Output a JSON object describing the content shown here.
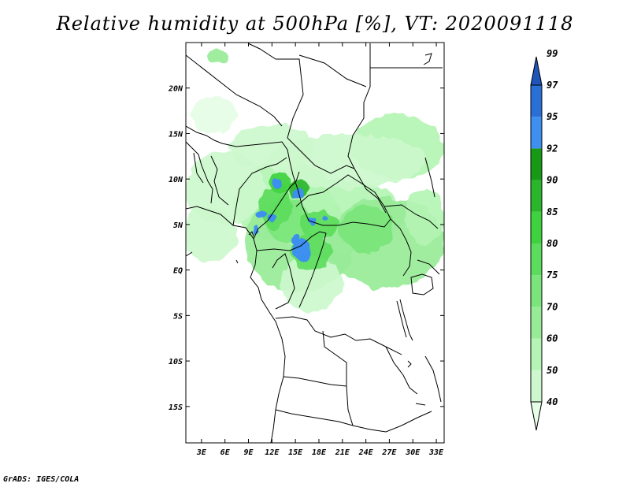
{
  "title": "Relative humidity at 500hPa [%], VT: 2020091118",
  "credit": "GrADS: IGES/COLA",
  "map": {
    "lon_range": [
      1,
      34
    ],
    "lat_range": [
      -19,
      25
    ],
    "lon_ticks": [
      3,
      6,
      9,
      12,
      15,
      18,
      21,
      24,
      27,
      30,
      33
    ],
    "lon_tick_labels": [
      "3E",
      "6E",
      "9E",
      "12E",
      "15E",
      "18E",
      "21E",
      "24E",
      "27E",
      "30E",
      "33E"
    ],
    "lat_ticks": [
      20,
      15,
      10,
      5,
      0,
      -5,
      -10,
      -15
    ],
    "lat_tick_labels": [
      "20N",
      "15N",
      "10N",
      "5N",
      "EQ",
      "5S",
      "10S",
      "15S"
    ]
  },
  "colorbar": {
    "levels": [
      "40",
      "50",
      "60",
      "70",
      "75",
      "80",
      "85",
      "90",
      "92",
      "95",
      "97",
      "99"
    ],
    "colors": [
      "#e6fde6",
      "#cdf8cd",
      "#b4f4b4",
      "#98ec98",
      "#7ae57a",
      "#5cdc5c",
      "#3fd23f",
      "#2ab62a",
      "#169a16",
      "#3e8ff0",
      "#2a6fd6",
      "#1f54b8"
    ]
  },
  "humidity_blobs": [
    {
      "lon": 13.5,
      "lat": 7.5,
      "rx": 6.5,
      "ry": 4.5,
      "level": 2
    },
    {
      "lon": 15.5,
      "lat": 3.0,
      "rx": 7.0,
      "ry": 5.5,
      "level": 3
    },
    {
      "lon": 20.0,
      "lat": 6.0,
      "rx": 9.0,
      "ry": 4.0,
      "level": 2
    },
    {
      "lon": 26.5,
      "lat": 3.0,
      "rx": 7.5,
      "ry": 5.0,
      "level": 3
    },
    {
      "lon": 28.0,
      "lat": 13.5,
      "rx": 6.0,
      "ry": 3.5,
      "level": 2
    },
    {
      "lon": 21.5,
      "lat": 12.0,
      "rx": 10.0,
      "ry": 3.0,
      "level": 1
    },
    {
      "lon": 6.0,
      "lat": 9.0,
      "rx": 5.0,
      "ry": 4.0,
      "level": 1
    },
    {
      "lon": 4.0,
      "lat": 4.0,
      "rx": 3.5,
      "ry": 3.0,
      "level": 1
    },
    {
      "lon": 12.0,
      "lat": 13.5,
      "rx": 5.5,
      "ry": 2.5,
      "level": 1
    },
    {
      "lon": 5.0,
      "lat": 23.5,
      "rx": 1.2,
      "ry": 0.9,
      "level": 3
    },
    {
      "lon": 4.5,
      "lat": 17.0,
      "rx": 3.0,
      "ry": 2.0,
      "level": 0
    },
    {
      "lon": 31.5,
      "lat": 6.0,
      "rx": 2.5,
      "ry": 3.0,
      "level": 2
    },
    {
      "lon": 17.0,
      "lat": -1.5,
      "rx": 4.0,
      "ry": 3.0,
      "level": 1
    },
    {
      "lon": 14.0,
      "lat": 5.5,
      "rx": 3.0,
      "ry": 2.5,
      "level": 4
    },
    {
      "lon": 17.0,
      "lat": 2.0,
      "rx": 2.5,
      "ry": 2.0,
      "level": 5
    },
    {
      "lon": 24.0,
      "lat": 4.5,
      "rx": 3.5,
      "ry": 2.5,
      "level": 4
    },
    {
      "lon": 18.0,
      "lat": 5.0,
      "rx": 2.5,
      "ry": 1.5,
      "level": 5
    },
    {
      "lon": 12.5,
      "lat": 7.0,
      "rx": 2.0,
      "ry": 2.5,
      "level": 5
    },
    {
      "lon": 13.0,
      "lat": 9.5,
      "rx": 1.5,
      "ry": 1.2,
      "level": 6
    },
    {
      "lon": 15.5,
      "lat": 9.0,
      "rx": 1.2,
      "ry": 1.0,
      "level": 7
    },
    {
      "lon": 15.8,
      "lat": 2.2,
      "rx": 1.0,
      "ry": 1.3,
      "level": 9
    },
    {
      "lon": 15.5,
      "lat": 8.5,
      "rx": 0.6,
      "ry": 0.6,
      "level": 9
    },
    {
      "lon": 12.6,
      "lat": 9.5,
      "rx": 0.5,
      "ry": 0.5,
      "level": 9
    },
    {
      "lon": 10.7,
      "lat": 6.0,
      "rx": 0.7,
      "ry": 0.5,
      "level": 9
    },
    {
      "lon": 12.0,
      "lat": 5.7,
      "rx": 0.5,
      "ry": 0.4,
      "level": 9
    },
    {
      "lon": 10.0,
      "lat": 4.5,
      "rx": 0.4,
      "ry": 0.4,
      "level": 9
    },
    {
      "lon": 15.0,
      "lat": 3.5,
      "rx": 0.5,
      "ry": 0.6,
      "level": 9
    },
    {
      "lon": 17.2,
      "lat": 5.3,
      "rx": 0.4,
      "ry": 0.4,
      "level": 9
    },
    {
      "lon": 18.5,
      "lat": 5.8,
      "rx": 0.4,
      "ry": 0.3,
      "level": 9
    }
  ]
}
